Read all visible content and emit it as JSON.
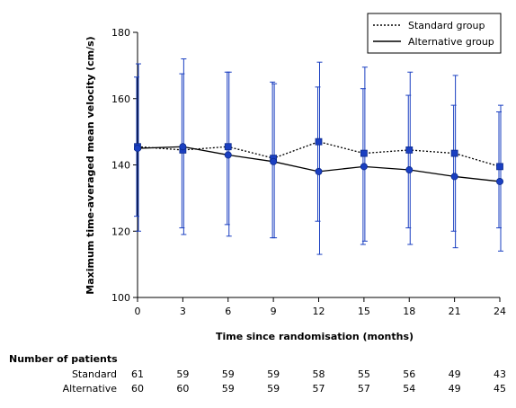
{
  "chart_data": {
    "type": "line",
    "xlabel": "Time since randomisation (months)",
    "ylabel": "Maximum time-averaged mean velocity (cm/s)",
    "x": [
      0,
      3,
      6,
      9,
      12,
      15,
      18,
      21,
      24
    ],
    "xlim": [
      0,
      24
    ],
    "ylim": [
      100,
      180
    ],
    "yticks": [
      100,
      120,
      140,
      160,
      180
    ],
    "grid": false,
    "legend_position": "top-right",
    "series": [
      {
        "name": "Standard group",
        "line_style": "dotted",
        "marker": "square",
        "values": [
          145.5,
          144.5,
          145.5,
          142,
          147,
          143.5,
          144.5,
          143.5,
          139.5
        ],
        "error_low": [
          120,
          119,
          118.5,
          118,
          113,
          117,
          116,
          115,
          114
        ],
        "error_high": [
          170.5,
          172,
          168,
          164.5,
          171,
          169.5,
          168,
          167,
          158
        ]
      },
      {
        "name": "Alternative group",
        "line_style": "solid",
        "marker": "circle",
        "values": [
          145,
          145.5,
          143,
          141,
          138,
          139.5,
          138.5,
          136.5,
          135
        ],
        "error_low": [
          124.5,
          121,
          122,
          118,
          123,
          116,
          121,
          120,
          121
        ],
        "error_high": [
          166.5,
          167.5,
          168,
          165,
          163.5,
          163,
          161,
          158,
          156
        ]
      }
    ],
    "colors": {
      "line": "#000000",
      "marker": "#1a3fc1",
      "error_bar": "#1a3fc1"
    }
  },
  "patients_table": {
    "title": "Number of patients",
    "rows": [
      {
        "label": "Standard",
        "values": [
          "61",
          "59",
          "59",
          "59",
          "58",
          "55",
          "56",
          "49",
          "43"
        ]
      },
      {
        "label": "Alternative",
        "values": [
          "60",
          "60",
          "59",
          "59",
          "57",
          "57",
          "54",
          "49",
          "45"
        ]
      }
    ]
  }
}
